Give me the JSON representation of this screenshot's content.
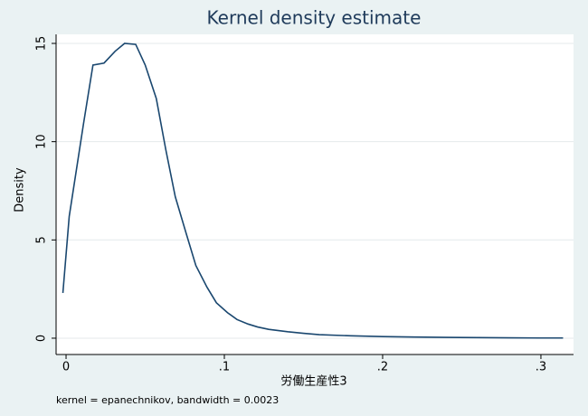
{
  "chart_data": {
    "type": "line",
    "title": "Kernel density estimate",
    "xlabel": "労働生産性3",
    "ylabel": "Density",
    "note": "kernel = epanechnikov, bandwidth = 0.0023",
    "x": [
      -0.002,
      0.002,
      0.011,
      0.017,
      0.024,
      0.031,
      0.037,
      0.044,
      0.05,
      0.057,
      0.063,
      0.069,
      0.076,
      0.082,
      0.089,
      0.095,
      0.102,
      0.108,
      0.115,
      0.121,
      0.128,
      0.14,
      0.15,
      0.16,
      0.18,
      0.2,
      0.22,
      0.24,
      0.26,
      0.28,
      0.3,
      0.314
    ],
    "series": [
      {
        "color": "#1a476f",
        "values": [
          2.3,
          6.2,
          10.9,
          13.9,
          14.0,
          14.6,
          15.0,
          14.95,
          13.9,
          12.2,
          9.6,
          7.2,
          5.3,
          3.7,
          2.6,
          1.8,
          1.3,
          0.95,
          0.72,
          0.57,
          0.45,
          0.33,
          0.25,
          0.18,
          0.12,
          0.08,
          0.06,
          0.04,
          0.03,
          0.02,
          0.01,
          0.01
        ]
      }
    ],
    "xlim": [
      -0.0063,
      0.3206
    ],
    "ylim": [
      -0.83,
      15.46
    ],
    "xticks": [
      0,
      {
        "value": 0.1,
        "label": ".1"
      },
      {
        "value": 0.2,
        "label": ".2"
      },
      {
        "value": 0.3,
        "label": ".3"
      }
    ],
    "yticks": [
      0,
      5,
      10,
      15
    ],
    "grid": true
  }
}
